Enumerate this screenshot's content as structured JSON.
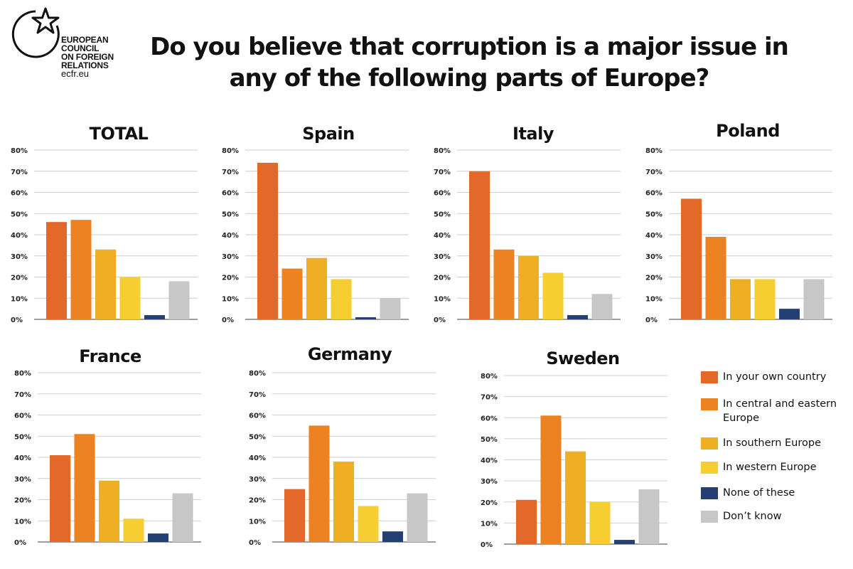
{
  "header": {
    "title_line1": "Do you believe that corruption is a major issue in",
    "title_line2": "any of the following parts of Europe?"
  },
  "logo": {
    "lines": [
      "EUROPEAN",
      "COUNCIL",
      "ON FOREIGN",
      "RELATIONS"
    ],
    "url": "ecfr.eu"
  },
  "colors": {
    "own_country": "#E2692A",
    "central_eastern": "#EC8222",
    "southern": "#EFAF24",
    "western": "#F6CE32",
    "none": "#243F74",
    "dont_know": "#C7C7C7"
  },
  "chart_data": [
    {
      "type": "bar",
      "title": "TOTAL",
      "categories": [
        "In your own country",
        "In central and eastern Europe",
        "In southern Europe",
        "In western Europe",
        "None of these",
        "Don't know"
      ],
      "values": [
        46,
        47,
        33,
        20,
        2,
        18
      ],
      "ylim": [
        0,
        80
      ],
      "yticks": [
        "0%",
        "10%",
        "20%",
        "30%",
        "40%",
        "50%",
        "60%",
        "70%",
        "80%"
      ],
      "grid": true
    },
    {
      "type": "bar",
      "title": "Spain",
      "categories": [
        "In your own country",
        "In central and eastern Europe",
        "In southern Europe",
        "In western Europe",
        "None of these",
        "Don't know"
      ],
      "values": [
        74,
        24,
        29,
        19,
        1,
        10
      ],
      "ylim": [
        0,
        80
      ],
      "yticks": [
        "0%",
        "10%",
        "20%",
        "30%",
        "40%",
        "50%",
        "60%",
        "70%",
        "80%"
      ],
      "grid": true
    },
    {
      "type": "bar",
      "title": "Italy",
      "categories": [
        "In your own country",
        "In central and eastern Europe",
        "In southern Europe",
        "In western Europe",
        "None of these",
        "Don't know"
      ],
      "values": [
        70,
        33,
        30,
        22,
        2,
        12
      ],
      "ylim": [
        0,
        80
      ],
      "yticks": [
        "0%",
        "10%",
        "20%",
        "30%",
        "40%",
        "50%",
        "60%",
        "70%",
        "80%"
      ],
      "grid": true
    },
    {
      "type": "bar",
      "title": "Poland",
      "categories": [
        "In your own country",
        "In central and eastern Europe",
        "In southern Europe",
        "In western Europe",
        "None of these",
        "Don't know"
      ],
      "values": [
        57,
        39,
        19,
        19,
        5,
        19
      ],
      "ylim": [
        0,
        80
      ],
      "yticks": [
        "0%",
        "10%",
        "20%",
        "30%",
        "40%",
        "50%",
        "60%",
        "70%",
        "80%"
      ],
      "grid": true
    },
    {
      "type": "bar",
      "title": "France",
      "categories": [
        "In your own country",
        "In central and eastern Europe",
        "In southern Europe",
        "In western Europe",
        "None of these",
        "Don't know"
      ],
      "values": [
        41,
        51,
        29,
        11,
        4,
        23
      ],
      "ylim": [
        0,
        80
      ],
      "yticks": [
        "0%",
        "10%",
        "20%",
        "30%",
        "40%",
        "50%",
        "60%",
        "70%",
        "80%"
      ],
      "grid": true
    },
    {
      "type": "bar",
      "title": "Germany",
      "categories": [
        "In your own country",
        "In central and eastern Europe",
        "In southern Europe",
        "In western Europe",
        "None of these",
        "Don't know"
      ],
      "values": [
        25,
        55,
        38,
        17,
        5,
        23
      ],
      "ylim": [
        0,
        80
      ],
      "yticks": [
        "0%",
        "10%",
        "20%",
        "30%",
        "40%",
        "50%",
        "60%",
        "70%",
        "80%"
      ],
      "grid": true
    },
    {
      "type": "bar",
      "title": "Sweden",
      "categories": [
        "In your own country",
        "In central and eastern Europe",
        "In southern Europe",
        "In western Europe",
        "None of these",
        "Don't know"
      ],
      "values": [
        21,
        61,
        44,
        20,
        2,
        26
      ],
      "ylim": [
        0,
        80
      ],
      "yticks": [
        "0%",
        "10%",
        "20%",
        "30%",
        "40%",
        "50%",
        "60%",
        "70%",
        "80%"
      ],
      "grid": true
    }
  ],
  "legend": {
    "placement": "bottom-right",
    "items": [
      {
        "label": "In your own country",
        "color": "#E2692A"
      },
      {
        "label": "In central and eastern Europe",
        "color": "#EC8222"
      },
      {
        "label": "In southern Europe",
        "color": "#EFAF24"
      },
      {
        "label": "In western Europe",
        "color": "#F6CE32"
      },
      {
        "label": "None of these",
        "color": "#243F74"
      },
      {
        "label": "Don’t know",
        "color": "#C7C7C7"
      }
    ]
  }
}
